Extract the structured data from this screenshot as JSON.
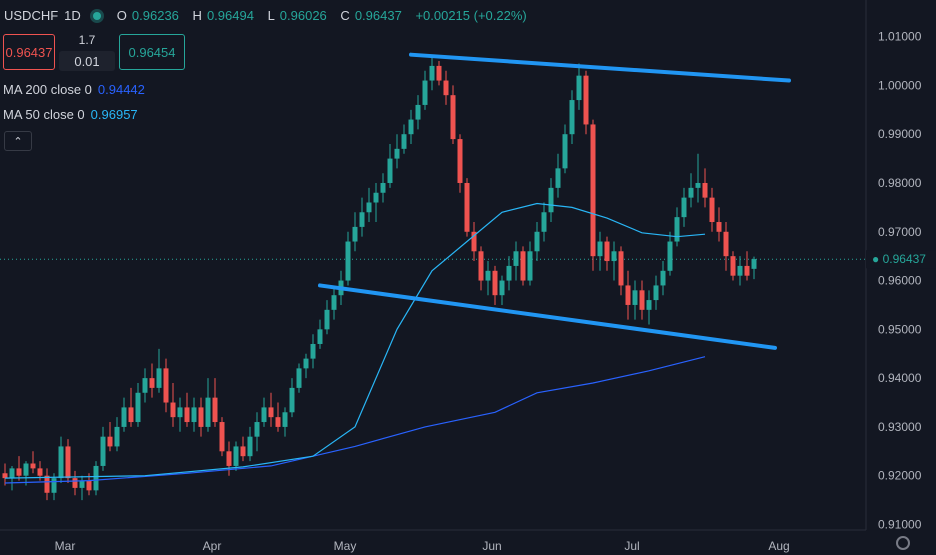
{
  "header": {
    "symbol": "USDCHF",
    "interval": "1D",
    "open_label": "O",
    "open": "0.96236",
    "high_label": "H",
    "high": "0.96494",
    "low_label": "L",
    "low": "0.96026",
    "close_label": "C",
    "close": "0.96437",
    "change": "+0.00215 (+0.22%)"
  },
  "trade": {
    "sell_price": "0.96437",
    "spread": "1.7",
    "lot": "0.01",
    "buy_price": "0.96454"
  },
  "indicators": [
    {
      "label": "MA 200 close 0",
      "value": "0.94442",
      "color": "#2962ff"
    },
    {
      "label": "MA 50 close 0",
      "value": "0.96957",
      "color": "#29b6f6"
    }
  ],
  "colors": {
    "up": "#26a69a",
    "down": "#ef5350",
    "trend": "#2196f3"
  },
  "chart_data": {
    "type": "candlestick",
    "ylim": [
      0.906,
      1.013
    ],
    "y_ticks": [
      "1.01000",
      "1.00000",
      "0.99000",
      "0.98000",
      "0.97000",
      "0.96000",
      "0.95000",
      "0.94000",
      "0.93000",
      "0.92000",
      "0.91000"
    ],
    "x_ticks": [
      "Mar",
      "Apr",
      "May",
      "Jun",
      "Jul",
      "Aug"
    ],
    "last_price": "0.96437",
    "gridlines": false,
    "candles": [
      [
        0.9205,
        0.9225,
        0.918,
        0.9195
      ],
      [
        0.9195,
        0.922,
        0.917,
        0.9215
      ],
      [
        0.9215,
        0.924,
        0.919,
        0.92
      ],
      [
        0.92,
        0.923,
        0.918,
        0.9225
      ],
      [
        0.9225,
        0.925,
        0.9205,
        0.9215
      ],
      [
        0.9215,
        0.923,
        0.919,
        0.92
      ],
      [
        0.92,
        0.9215,
        0.915,
        0.9165
      ],
      [
        0.9165,
        0.9205,
        0.915,
        0.9195
      ],
      [
        0.9195,
        0.928,
        0.9185,
        0.926
      ],
      [
        0.926,
        0.9275,
        0.9185,
        0.9195
      ],
      [
        0.9195,
        0.921,
        0.916,
        0.9175
      ],
      [
        0.9175,
        0.92,
        0.915,
        0.919
      ],
      [
        0.919,
        0.9205,
        0.916,
        0.917
      ],
      [
        0.917,
        0.923,
        0.916,
        0.922
      ],
      [
        0.922,
        0.93,
        0.921,
        0.928
      ],
      [
        0.928,
        0.931,
        0.925,
        0.926
      ],
      [
        0.926,
        0.932,
        0.925,
        0.93
      ],
      [
        0.93,
        0.936,
        0.929,
        0.934
      ],
      [
        0.934,
        0.938,
        0.93,
        0.931
      ],
      [
        0.931,
        0.939,
        0.93,
        0.937
      ],
      [
        0.937,
        0.942,
        0.935,
        0.94
      ],
      [
        0.94,
        0.943,
        0.936,
        0.938
      ],
      [
        0.938,
        0.946,
        0.937,
        0.942
      ],
      [
        0.942,
        0.944,
        0.933,
        0.935
      ],
      [
        0.935,
        0.939,
        0.93,
        0.932
      ],
      [
        0.932,
        0.936,
        0.929,
        0.934
      ],
      [
        0.934,
        0.937,
        0.93,
        0.931
      ],
      [
        0.931,
        0.936,
        0.929,
        0.934
      ],
      [
        0.934,
        0.936,
        0.928,
        0.93
      ],
      [
        0.93,
        0.94,
        0.929,
        0.936
      ],
      [
        0.936,
        0.94,
        0.93,
        0.931
      ],
      [
        0.931,
        0.932,
        0.924,
        0.925
      ],
      [
        0.925,
        0.927,
        0.92,
        0.922
      ],
      [
        0.922,
        0.927,
        0.921,
        0.926
      ],
      [
        0.926,
        0.928,
        0.923,
        0.924
      ],
      [
        0.924,
        0.93,
        0.923,
        0.928
      ],
      [
        0.928,
        0.933,
        0.925,
        0.931
      ],
      [
        0.931,
        0.936,
        0.93,
        0.934
      ],
      [
        0.934,
        0.937,
        0.93,
        0.932
      ],
      [
        0.932,
        0.935,
        0.929,
        0.93
      ],
      [
        0.93,
        0.934,
        0.928,
        0.933
      ],
      [
        0.933,
        0.94,
        0.932,
        0.938
      ],
      [
        0.938,
        0.943,
        0.937,
        0.942
      ],
      [
        0.942,
        0.945,
        0.94,
        0.944
      ],
      [
        0.944,
        0.949,
        0.942,
        0.947
      ],
      [
        0.947,
        0.952,
        0.946,
        0.95
      ],
      [
        0.95,
        0.956,
        0.949,
        0.954
      ],
      [
        0.954,
        0.959,
        0.952,
        0.957
      ],
      [
        0.957,
        0.962,
        0.955,
        0.96
      ],
      [
        0.96,
        0.97,
        0.959,
        0.968
      ],
      [
        0.968,
        0.974,
        0.966,
        0.971
      ],
      [
        0.971,
        0.977,
        0.969,
        0.974
      ],
      [
        0.974,
        0.979,
        0.972,
        0.976
      ],
      [
        0.976,
        0.98,
        0.972,
        0.978
      ],
      [
        0.978,
        0.982,
        0.976,
        0.98
      ],
      [
        0.98,
        0.988,
        0.979,
        0.985
      ],
      [
        0.985,
        0.99,
        0.983,
        0.987
      ],
      [
        0.987,
        0.992,
        0.986,
        0.99
      ],
      [
        0.99,
        0.995,
        0.988,
        0.993
      ],
      [
        0.993,
        0.998,
        0.991,
        0.996
      ],
      [
        0.996,
        1.003,
        0.995,
        1.001
      ],
      [
        1.001,
        1.006,
        0.999,
        1.004
      ],
      [
        1.004,
        1.005,
        1.0,
        1.001
      ],
      [
        1.001,
        1.003,
        0.996,
        0.998
      ],
      [
        0.998,
        1.0,
        0.988,
        0.989
      ],
      [
        0.989,
        0.99,
        0.978,
        0.98
      ],
      [
        0.98,
        0.981,
        0.969,
        0.97
      ],
      [
        0.97,
        0.972,
        0.964,
        0.966
      ],
      [
        0.966,
        0.967,
        0.958,
        0.96
      ],
      [
        0.96,
        0.964,
        0.957,
        0.962
      ],
      [
        0.962,
        0.963,
        0.955,
        0.957
      ],
      [
        0.957,
        0.961,
        0.955,
        0.96
      ],
      [
        0.96,
        0.965,
        0.958,
        0.963
      ],
      [
        0.963,
        0.968,
        0.96,
        0.966
      ],
      [
        0.966,
        0.967,
        0.959,
        0.96
      ],
      [
        0.96,
        0.968,
        0.959,
        0.966
      ],
      [
        0.966,
        0.972,
        0.964,
        0.97
      ],
      [
        0.97,
        0.976,
        0.968,
        0.974
      ],
      [
        0.974,
        0.981,
        0.972,
        0.979
      ],
      [
        0.979,
        0.986,
        0.977,
        0.983
      ],
      [
        0.983,
        0.992,
        0.982,
        0.99
      ],
      [
        0.99,
        0.999,
        0.988,
        0.997
      ],
      [
        0.997,
        1.0045,
        0.995,
        1.002
      ],
      [
        1.002,
        1.003,
        0.99,
        0.992
      ],
      [
        0.992,
        0.993,
        0.962,
        0.965
      ],
      [
        0.965,
        0.97,
        0.962,
        0.968
      ],
      [
        0.968,
        0.969,
        0.962,
        0.964
      ],
      [
        0.964,
        0.968,
        0.96,
        0.966
      ],
      [
        0.966,
        0.967,
        0.957,
        0.959
      ],
      [
        0.959,
        0.962,
        0.952,
        0.955
      ],
      [
        0.955,
        0.96,
        0.952,
        0.958
      ],
      [
        0.958,
        0.96,
        0.952,
        0.954
      ],
      [
        0.954,
        0.958,
        0.951,
        0.956
      ],
      [
        0.956,
        0.961,
        0.954,
        0.959
      ],
      [
        0.959,
        0.964,
        0.957,
        0.962
      ],
      [
        0.962,
        0.97,
        0.961,
        0.968
      ],
      [
        0.968,
        0.975,
        0.967,
        0.973
      ],
      [
        0.973,
        0.979,
        0.971,
        0.977
      ],
      [
        0.977,
        0.982,
        0.975,
        0.979
      ],
      [
        0.979,
        0.986,
        0.976,
        0.98
      ],
      [
        0.98,
        0.983,
        0.975,
        0.977
      ],
      [
        0.977,
        0.979,
        0.97,
        0.972
      ],
      [
        0.972,
        0.975,
        0.968,
        0.97
      ],
      [
        0.97,
        0.972,
        0.962,
        0.965
      ],
      [
        0.965,
        0.966,
        0.96,
        0.961
      ],
      [
        0.961,
        0.965,
        0.959,
        0.963
      ],
      [
        0.963,
        0.966,
        0.96,
        0.961
      ],
      [
        0.9624,
        0.9649,
        0.9603,
        0.9644
      ]
    ],
    "ma50": [
      [
        0,
        0.9195
      ],
      [
        20,
        0.92
      ],
      [
        34,
        0.9218
      ],
      [
        44,
        0.924
      ],
      [
        50,
        0.93
      ],
      [
        56,
        0.95
      ],
      [
        61,
        0.962
      ],
      [
        66,
        0.968
      ],
      [
        71,
        0.974
      ],
      [
        76,
        0.9758
      ],
      [
        81,
        0.975
      ],
      [
        86,
        0.9728
      ],
      [
        91,
        0.9698
      ],
      [
        96,
        0.969
      ],
      [
        100,
        0.9695
      ]
    ],
    "ma200": [
      [
        0,
        0.9185
      ],
      [
        12,
        0.919
      ],
      [
        26,
        0.9205
      ],
      [
        38,
        0.922
      ],
      [
        50,
        0.926
      ],
      [
        60,
        0.93
      ],
      [
        70,
        0.933
      ],
      [
        76,
        0.937
      ],
      [
        84,
        0.939
      ],
      [
        92,
        0.9415
      ],
      [
        100,
        0.9444
      ]
    ],
    "trendlines": [
      {
        "from": [
          0.959,
          0.9575
        ],
        "to": [
          0.9462,
          1.013
        ],
        "note": "lower"
      },
      {
        "from": [
          1.006,
          1.0075
        ],
        "to": [
          1.001,
          1.014
        ],
        "note": "upper"
      }
    ]
  }
}
